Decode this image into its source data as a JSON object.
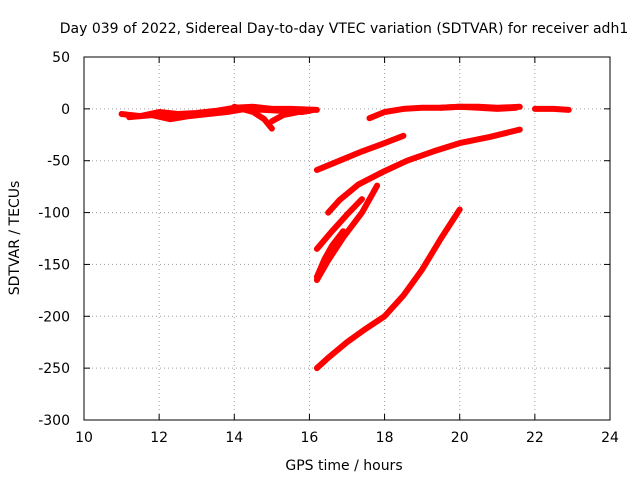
{
  "chart_data": {
    "type": "line",
    "title": "Day 039 of 2022, Sidereal Day-to-day VTEC variation (SDTVAR) for receiver adh1",
    "xlabel": "GPS time / hours",
    "ylabel": "SDTVAR / TECUs",
    "xlim": [
      10,
      24
    ],
    "ylim": [
      -300,
      50
    ],
    "xticks": [
      10,
      12,
      14,
      16,
      18,
      20,
      22,
      24
    ],
    "yticks": [
      -300,
      -250,
      -200,
      -150,
      -100,
      -50,
      0,
      50
    ],
    "xtick_labels": [
      "10",
      "12",
      "14",
      "16",
      "18",
      "20",
      "22",
      "24"
    ],
    "ytick_labels": [
      "-300",
      "-250",
      "-200",
      "-150",
      "-100",
      "-50",
      "0",
      "50"
    ],
    "grid": true,
    "series_color": "#ff0000",
    "series": [
      {
        "name": "s1",
        "x": [
          11.0,
          11.5,
          12.0,
          12.5,
          13.0,
          13.5,
          14.0,
          14.5,
          15.0,
          15.5,
          16.2
        ],
        "y": [
          -5,
          -7,
          -3,
          -5,
          -4,
          -2,
          1,
          2,
          0,
          0,
          -1
        ]
      },
      {
        "name": "s2",
        "x": [
          11.2,
          11.8,
          12.3,
          12.8,
          13.3,
          13.8,
          14.3,
          14.8,
          15.3,
          15.8,
          16.1
        ],
        "y": [
          -8,
          -6,
          -10,
          -7,
          -5,
          -3,
          0,
          -1,
          -2,
          -3,
          -1
        ]
      },
      {
        "name": "s3",
        "x": [
          14.0,
          14.5,
          14.8,
          15.0
        ],
        "y": [
          2,
          -3,
          -10,
          -19
        ]
      },
      {
        "name": "s4",
        "x": [
          15.0,
          15.3,
          15.7,
          16.0
        ],
        "y": [
          -12,
          -6,
          -3,
          -2
        ]
      },
      {
        "name": "s5",
        "x": [
          17.6,
          18.0,
          18.5,
          19.0,
          19.5,
          20.0,
          20.5,
          21.0,
          21.5
        ],
        "y": [
          -9,
          -3,
          0,
          1,
          1,
          2,
          1,
          0,
          1
        ]
      },
      {
        "name": "s6",
        "x": [
          19.5,
          20.0,
          20.5,
          21.0,
          21.6
        ],
        "y": [
          1,
          2,
          2,
          1,
          2
        ]
      },
      {
        "name": "s7",
        "x": [
          22.0,
          22.5,
          22.9
        ],
        "y": [
          0,
          0,
          -1
        ]
      },
      {
        "name": "s8",
        "x": [
          16.2,
          16.8,
          17.4,
          18.0,
          18.5
        ],
        "y": [
          -59,
          -50,
          -41,
          -33,
          -26
        ]
      },
      {
        "name": "s9",
        "x": [
          16.5,
          16.8,
          17.3,
          18.0,
          18.6,
          19.3,
          20.0,
          20.8,
          21.6
        ],
        "y": [
          -100,
          -88,
          -73,
          -60,
          -50,
          -41,
          -33,
          -27,
          -20
        ]
      },
      {
        "name": "s10",
        "x": [
          16.2,
          16.6,
          17.0,
          17.4
        ],
        "y": [
          -135,
          -118,
          -102,
          -87
        ]
      },
      {
        "name": "s11",
        "x": [
          16.2,
          16.5,
          16.9,
          17.4,
          17.8
        ],
        "y": [
          -165,
          -146,
          -124,
          -100,
          -74
        ]
      },
      {
        "name": "s12",
        "x": [
          16.2,
          16.4,
          16.6,
          16.9
        ],
        "y": [
          -162,
          -145,
          -132,
          -118
        ]
      },
      {
        "name": "s13",
        "x": [
          16.2,
          16.5,
          17.0,
          17.5,
          18.0,
          18.5,
          19.0,
          19.5,
          20.0
        ],
        "y": [
          -250,
          -240,
          -225,
          -212,
          -200,
          -180,
          -155,
          -125,
          -97
        ]
      }
    ]
  }
}
